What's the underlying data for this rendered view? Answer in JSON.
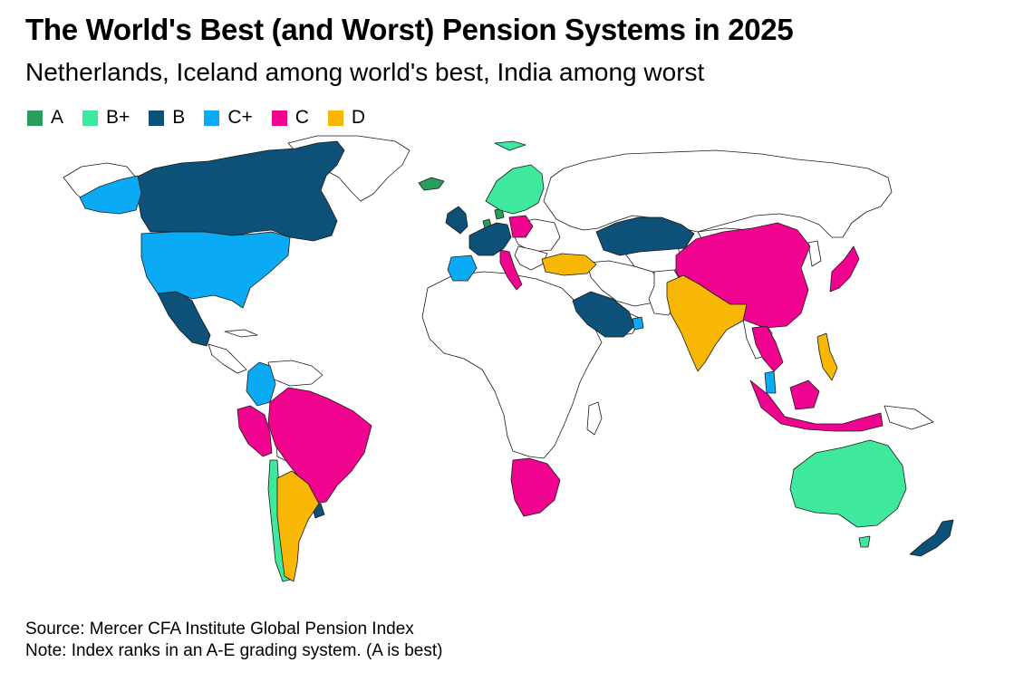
{
  "header": {
    "title": "The World's Best (and Worst) Pension Systems in 2025",
    "subtitle": "Netherlands, Iceland among world's best, India among worst"
  },
  "legend": [
    {
      "grade": "A",
      "color": "#2a9d5c"
    },
    {
      "grade": "B+",
      "color": "#3ee89c"
    },
    {
      "grade": "B",
      "color": "#0d5078"
    },
    {
      "grade": "C+",
      "color": "#0aaaf5"
    },
    {
      "grade": "C",
      "color": "#f0038e"
    },
    {
      "grade": "D",
      "color": "#f8b705"
    }
  ],
  "countries": [
    {
      "name": "Iceland",
      "grade": "A"
    },
    {
      "name": "Netherlands",
      "grade": "A"
    },
    {
      "name": "Denmark",
      "grade": "A"
    },
    {
      "name": "Norway",
      "grade": "B+"
    },
    {
      "name": "Sweden",
      "grade": "B+"
    },
    {
      "name": "Finland",
      "grade": "B+"
    },
    {
      "name": "Australia",
      "grade": "B+"
    },
    {
      "name": "Chile",
      "grade": "B+"
    },
    {
      "name": "Canada",
      "grade": "B"
    },
    {
      "name": "Mexico",
      "grade": "B"
    },
    {
      "name": "United Kingdom",
      "grade": "B"
    },
    {
      "name": "Ireland",
      "grade": "B"
    },
    {
      "name": "France",
      "grade": "B"
    },
    {
      "name": "Germany",
      "grade": "B"
    },
    {
      "name": "Kazakhstan",
      "grade": "B"
    },
    {
      "name": "Saudi Arabia",
      "grade": "B"
    },
    {
      "name": "Uruguay",
      "grade": "B"
    },
    {
      "name": "New Zealand",
      "grade": "B"
    },
    {
      "name": "United States",
      "grade": "C+"
    },
    {
      "name": "Spain",
      "grade": "C+"
    },
    {
      "name": "Colombia",
      "grade": "C+"
    },
    {
      "name": "United Arab Emirates",
      "grade": "C+"
    },
    {
      "name": "Malaysia",
      "grade": "C+"
    },
    {
      "name": "Brazil",
      "grade": "C"
    },
    {
      "name": "Peru",
      "grade": "C"
    },
    {
      "name": "China",
      "grade": "C"
    },
    {
      "name": "Japan",
      "grade": "C"
    },
    {
      "name": "South Africa",
      "grade": "C"
    },
    {
      "name": "Italy",
      "grade": "C"
    },
    {
      "name": "Poland",
      "grade": "C"
    },
    {
      "name": "Indonesia",
      "grade": "C"
    },
    {
      "name": "Thailand",
      "grade": "C"
    },
    {
      "name": "India",
      "grade": "D"
    },
    {
      "name": "Argentina",
      "grade": "D"
    },
    {
      "name": "Turkey",
      "grade": "D"
    },
    {
      "name": "Philippines",
      "grade": "D"
    }
  ],
  "footer": {
    "source": "Source: Mercer CFA Institute Global Pension Index",
    "note": "Note: Index ranks in an A-E grading system. (A is best)"
  }
}
